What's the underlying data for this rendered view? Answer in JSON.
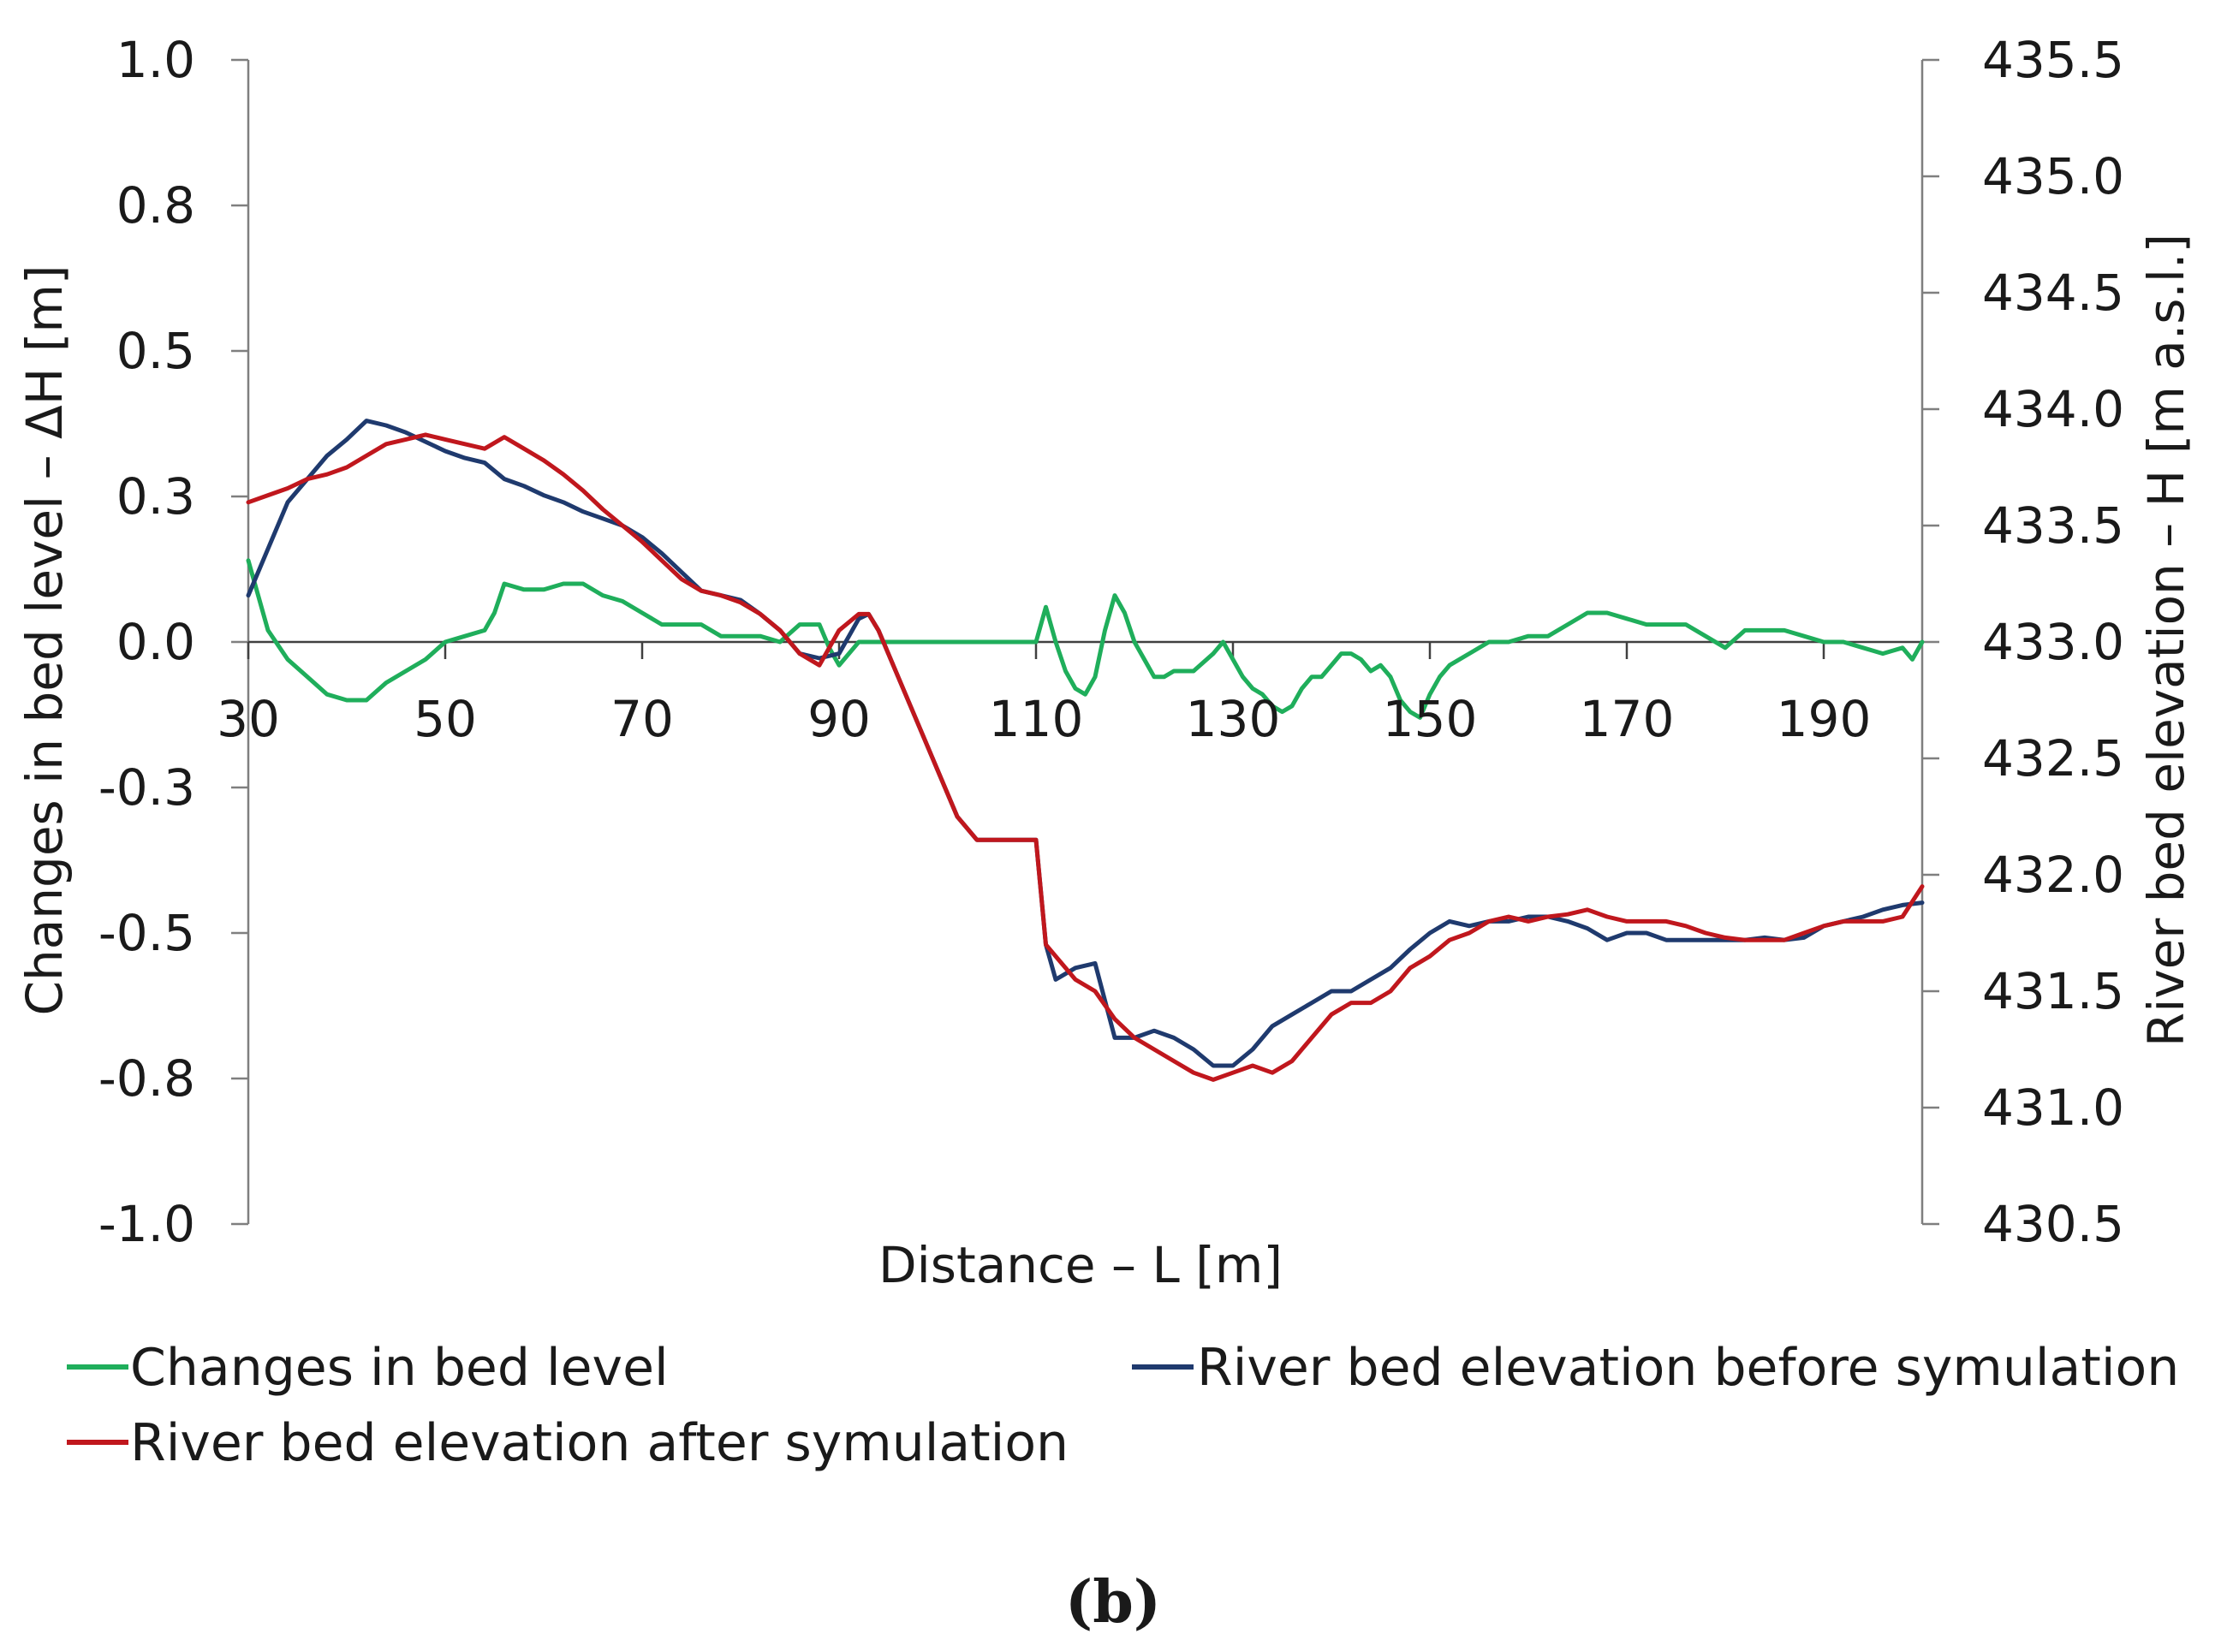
{
  "panel_label": "(b)",
  "chart_data": {
    "type": "line",
    "title": "",
    "xlabel": "Distance – L [m]",
    "ylabel_left": "Changes in bed level – ΔH [m]",
    "ylabel_right": "River bed elevation – H [m a.s.l.]",
    "xlim": [
      30,
      200
    ],
    "ylim_left": [
      -1.0,
      1.0
    ],
    "ylim_right": [
      430.5,
      435.5
    ],
    "x_ticks": [
      "30",
      "50",
      "70",
      "90",
      "110",
      "130",
      "150",
      "170",
      "190"
    ],
    "x_tick_values": [
      30,
      50,
      70,
      90,
      110,
      130,
      150,
      170,
      190
    ],
    "y_left_ticks": [
      "1.0",
      "0.8",
      "0.5",
      "0.3",
      "0.0",
      "-0.3",
      "-0.5",
      "-0.8",
      "-1.0"
    ],
    "y_left_tick_values": [
      1.0,
      0.75,
      0.5,
      0.25,
      0.0,
      -0.25,
      -0.5,
      -0.75,
      -1.0
    ],
    "y_right_ticks": [
      "435.5",
      "435.0",
      "434.5",
      "434.0",
      "433.5",
      "433.0",
      "432.5",
      "432.0",
      "431.5",
      "431.0",
      "430.5"
    ],
    "y_right_tick_values": [
      435.5,
      435.0,
      434.5,
      434.0,
      433.5,
      433.0,
      432.5,
      432.0,
      431.5,
      431.0,
      430.5
    ],
    "legend": {
      "position": "bottom",
      "entries": [
        "Changes in bed level",
        "River bed elevation before symulation",
        "River bed elevation after symulation"
      ]
    },
    "series": [
      {
        "name": "Changes in bed level",
        "axis": "left",
        "color": "#1fae5b",
        "x": [
          30,
          31,
          32,
          34,
          36,
          38,
          40,
          42,
          44,
          46,
          48,
          50,
          52,
          54,
          55,
          56,
          58,
          60,
          62,
          64,
          66,
          68,
          70,
          72,
          74,
          76,
          78,
          80,
          82,
          84,
          86,
          88,
          89,
          90,
          92,
          94,
          96,
          100,
          104,
          108,
          110,
          111,
          112,
          113,
          114,
          115,
          116,
          117,
          118,
          119,
          120,
          121,
          122,
          123,
          124,
          126,
          128,
          129,
          130,
          131,
          132,
          133,
          134,
          135,
          136,
          137,
          138,
          139,
          140,
          141,
          142,
          143,
          144,
          145,
          146,
          147,
          148,
          149,
          150,
          151,
          152,
          154,
          156,
          158,
          160,
          162,
          164,
          166,
          168,
          170,
          172,
          174,
          176,
          178,
          180,
          182,
          184,
          186,
          188,
          190,
          192,
          194,
          196,
          198,
          199,
          200
        ],
        "values": [
          0.14,
          0.08,
          0.02,
          -0.03,
          -0.06,
          -0.09,
          -0.1,
          -0.1,
          -0.07,
          -0.05,
          -0.03,
          0.0,
          0.01,
          0.02,
          0.05,
          0.1,
          0.09,
          0.09,
          0.1,
          0.1,
          0.08,
          0.07,
          0.05,
          0.03,
          0.03,
          0.03,
          0.01,
          0.01,
          0.01,
          0.0,
          0.03,
          0.03,
          -0.01,
          -0.04,
          0.0,
          0.0,
          0.0,
          0.0,
          0.0,
          0.0,
          0.0,
          0.06,
          0.0,
          -0.05,
          -0.08,
          -0.09,
          -0.06,
          0.02,
          0.08,
          0.05,
          0.0,
          -0.03,
          -0.06,
          -0.06,
          -0.05,
          -0.05,
          -0.02,
          0.0,
          -0.03,
          -0.06,
          -0.08,
          -0.09,
          -0.11,
          -0.12,
          -0.11,
          -0.08,
          -0.06,
          -0.06,
          -0.04,
          -0.02,
          -0.02,
          -0.03,
          -0.05,
          -0.04,
          -0.06,
          -0.1,
          -0.12,
          -0.13,
          -0.09,
          -0.06,
          -0.04,
          -0.02,
          0.0,
          0.0,
          0.01,
          0.01,
          0.03,
          0.05,
          0.05,
          0.04,
          0.03,
          0.03,
          0.03,
          0.01,
          -0.01,
          0.02,
          0.02,
          0.02,
          0.01,
          0.0,
          0.0,
          -0.01,
          -0.02,
          -0.01,
          -0.03,
          0.0
        ]
      },
      {
        "name": "River bed elevation before symulation",
        "axis": "right",
        "color": "#1f3a6e",
        "x": [
          30,
          32,
          34,
          36,
          38,
          40,
          42,
          44,
          46,
          48,
          50,
          52,
          54,
          56,
          58,
          60,
          62,
          64,
          66,
          68,
          70,
          72,
          74,
          76,
          78,
          80,
          82,
          84,
          86,
          88,
          90,
          92,
          93,
          94,
          96,
          98,
          100,
          102,
          104,
          106,
          108,
          110,
          111,
          112,
          114,
          116,
          118,
          120,
          122,
          124,
          126,
          128,
          130,
          132,
          134,
          136,
          138,
          140,
          142,
          144,
          146,
          148,
          150,
          152,
          154,
          156,
          158,
          160,
          162,
          164,
          166,
          168,
          170,
          172,
          174,
          176,
          178,
          180,
          182,
          184,
          186,
          188,
          190,
          192,
          194,
          196,
          198,
          200
        ],
        "values": [
          433.2,
          433.4,
          433.6,
          433.7,
          433.8,
          433.87,
          433.95,
          433.93,
          433.9,
          433.86,
          433.82,
          433.79,
          433.77,
          433.7,
          433.67,
          433.63,
          433.6,
          433.56,
          433.53,
          433.5,
          433.45,
          433.38,
          433.3,
          433.22,
          433.2,
          433.18,
          433.12,
          433.05,
          432.95,
          432.93,
          432.95,
          433.1,
          433.12,
          433.05,
          432.85,
          432.65,
          432.45,
          432.25,
          432.15,
          432.15,
          432.15,
          432.15,
          431.7,
          431.55,
          431.6,
          431.62,
          431.3,
          431.3,
          431.33,
          431.3,
          431.25,
          431.18,
          431.18,
          431.25,
          431.35,
          431.4,
          431.45,
          431.5,
          431.5,
          431.55,
          431.6,
          431.68,
          431.75,
          431.8,
          431.78,
          431.8,
          431.8,
          431.82,
          431.82,
          431.8,
          431.77,
          431.72,
          431.75,
          431.75,
          431.72,
          431.72,
          431.72,
          431.72,
          431.72,
          431.73,
          431.72,
          431.73,
          431.78,
          431.8,
          431.82,
          431.85,
          431.87,
          431.88
        ]
      },
      {
        "name": "River bed elevation after symulation",
        "axis": "right",
        "color": "#c0171d",
        "x": [
          30,
          32,
          34,
          36,
          38,
          40,
          42,
          44,
          46,
          48,
          50,
          52,
          54,
          56,
          58,
          60,
          62,
          64,
          66,
          68,
          70,
          72,
          74,
          76,
          78,
          80,
          82,
          84,
          86,
          88,
          90,
          92,
          93,
          94,
          96,
          98,
          100,
          102,
          104,
          106,
          108,
          110,
          111,
          112,
          114,
          116,
          118,
          120,
          122,
          124,
          126,
          128,
          130,
          132,
          134,
          136,
          138,
          140,
          142,
          144,
          146,
          148,
          150,
          152,
          154,
          156,
          158,
          160,
          162,
          164,
          166,
          168,
          170,
          172,
          174,
          176,
          178,
          180,
          182,
          184,
          186,
          188,
          190,
          192,
          194,
          196,
          198,
          200
        ],
        "values": [
          433.6,
          433.63,
          433.66,
          433.7,
          433.72,
          433.75,
          433.8,
          433.85,
          433.87,
          433.89,
          433.87,
          433.85,
          433.83,
          433.88,
          433.83,
          433.78,
          433.72,
          433.65,
          433.57,
          433.5,
          433.43,
          433.35,
          433.27,
          433.22,
          433.2,
          433.17,
          433.12,
          433.05,
          432.95,
          432.9,
          433.05,
          433.12,
          433.12,
          433.05,
          432.85,
          432.65,
          432.45,
          432.25,
          432.15,
          432.15,
          432.15,
          432.15,
          431.7,
          431.65,
          431.55,
          431.5,
          431.38,
          431.3,
          431.25,
          431.2,
          431.15,
          431.12,
          431.15,
          431.18,
          431.15,
          431.2,
          431.3,
          431.4,
          431.45,
          431.45,
          431.5,
          431.6,
          431.65,
          431.72,
          431.75,
          431.8,
          431.82,
          431.8,
          431.82,
          431.83,
          431.85,
          431.82,
          431.8,
          431.8,
          431.8,
          431.78,
          431.75,
          431.73,
          431.72,
          431.72,
          431.72,
          431.75,
          431.78,
          431.8,
          431.8,
          431.8,
          431.82,
          431.95
        ]
      }
    ]
  }
}
